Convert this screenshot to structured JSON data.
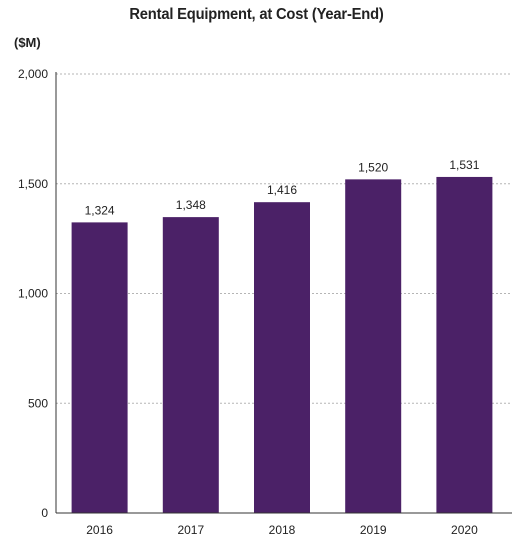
{
  "chart_data": {
    "type": "bar",
    "title": "Rental Equipment, at Cost (Year-End)",
    "unit_label": "($M)",
    "categories": [
      "2016",
      "2017",
      "2018",
      "2019",
      "2020"
    ],
    "values": [
      1324,
      1348,
      1416,
      1520,
      1531
    ],
    "value_labels": [
      "1,324",
      "1,348",
      "1,416",
      "1,520",
      "1,531"
    ],
    "ylim": [
      0,
      2000
    ],
    "yticks": [
      0,
      500,
      1000,
      1500,
      2000
    ],
    "ytick_labels": [
      "0",
      "500",
      "1,000",
      "1,500",
      "2,000"
    ],
    "grid": true,
    "bar_color": "#4b2167"
  }
}
